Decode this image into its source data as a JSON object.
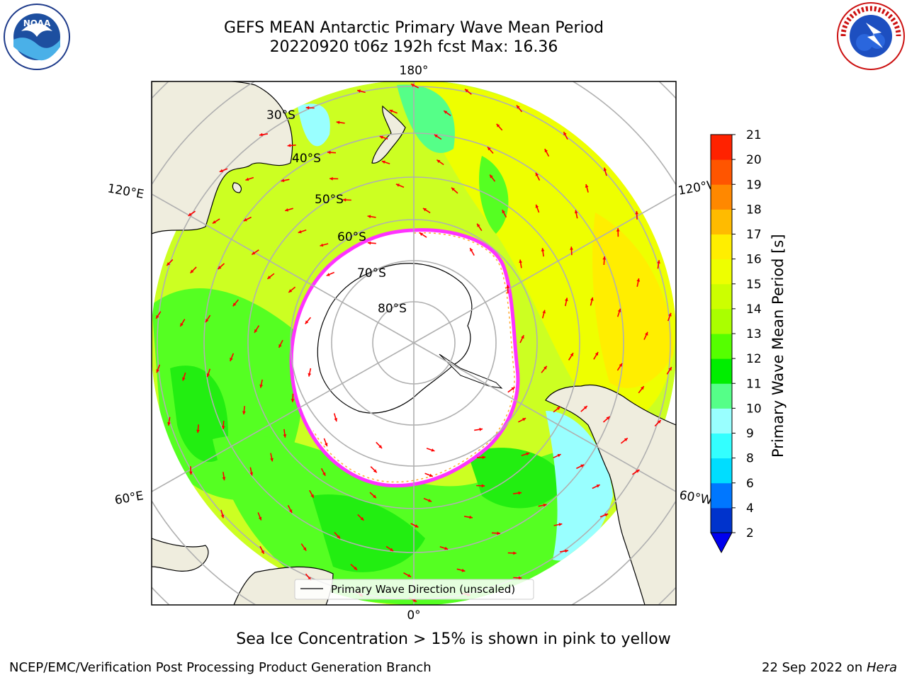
{
  "header": {
    "title_line1": "GEFS MEAN Antarctic Primary Wave Mean Period",
    "title_line2": "20220920 t06z 192h fcst   Max: 16.36"
  },
  "logos": {
    "left": {
      "icon": "noaa-logo",
      "text": "NOAA"
    },
    "right": {
      "icon": "nws-logo",
      "text": "NATIONAL WEATHER SERVICE"
    }
  },
  "map": {
    "projection": "south-polar-stereographic",
    "longitude_labels": {
      "top": "180°",
      "bottom": "0°",
      "upper_left": "120°E",
      "upper_right": "120°W",
      "lower_left": "60°E",
      "lower_right": "60°W"
    },
    "latitude_labels": [
      "30°S",
      "40°S",
      "50°S",
      "60°S",
      "70°S",
      "80°S"
    ],
    "legend_label": "Primary Wave Direction (unscaled)",
    "arrow_color": "#ff0000",
    "ice_edge_colors": [
      "#ff33ff",
      "#ffaa33",
      "#ffff44"
    ],
    "land_color": "#efedde",
    "antarctica_color": "#ffffff"
  },
  "colorbar": {
    "label": "Primary Wave Mean Period [s]",
    "ticks": [
      "2",
      "4",
      "6",
      "8",
      "9",
      "10",
      "11",
      "12",
      "13",
      "14",
      "15",
      "16",
      "17",
      "18",
      "19",
      "20",
      "21"
    ],
    "colors": [
      "#0033cc",
      "#0077ff",
      "#00ddff",
      "#33ffff",
      "#99ffff",
      "#55ff88",
      "#00ee00",
      "#55ff00",
      "#aaff00",
      "#ccff00",
      "#eeff00",
      "#ffee00",
      "#ffbb00",
      "#ff8800",
      "#ff5500",
      "#ff2200"
    ],
    "extend": "min",
    "extend_color": "#0000ee"
  },
  "footer": {
    "sea_ice_note": "Sea Ice Concentration > 15% is shown in pink to yellow",
    "credit": "NCEP/EMC/Verification Post Processing Product Generation Branch",
    "date": "22 Sep 2022 on ",
    "machine": "Hera"
  }
}
